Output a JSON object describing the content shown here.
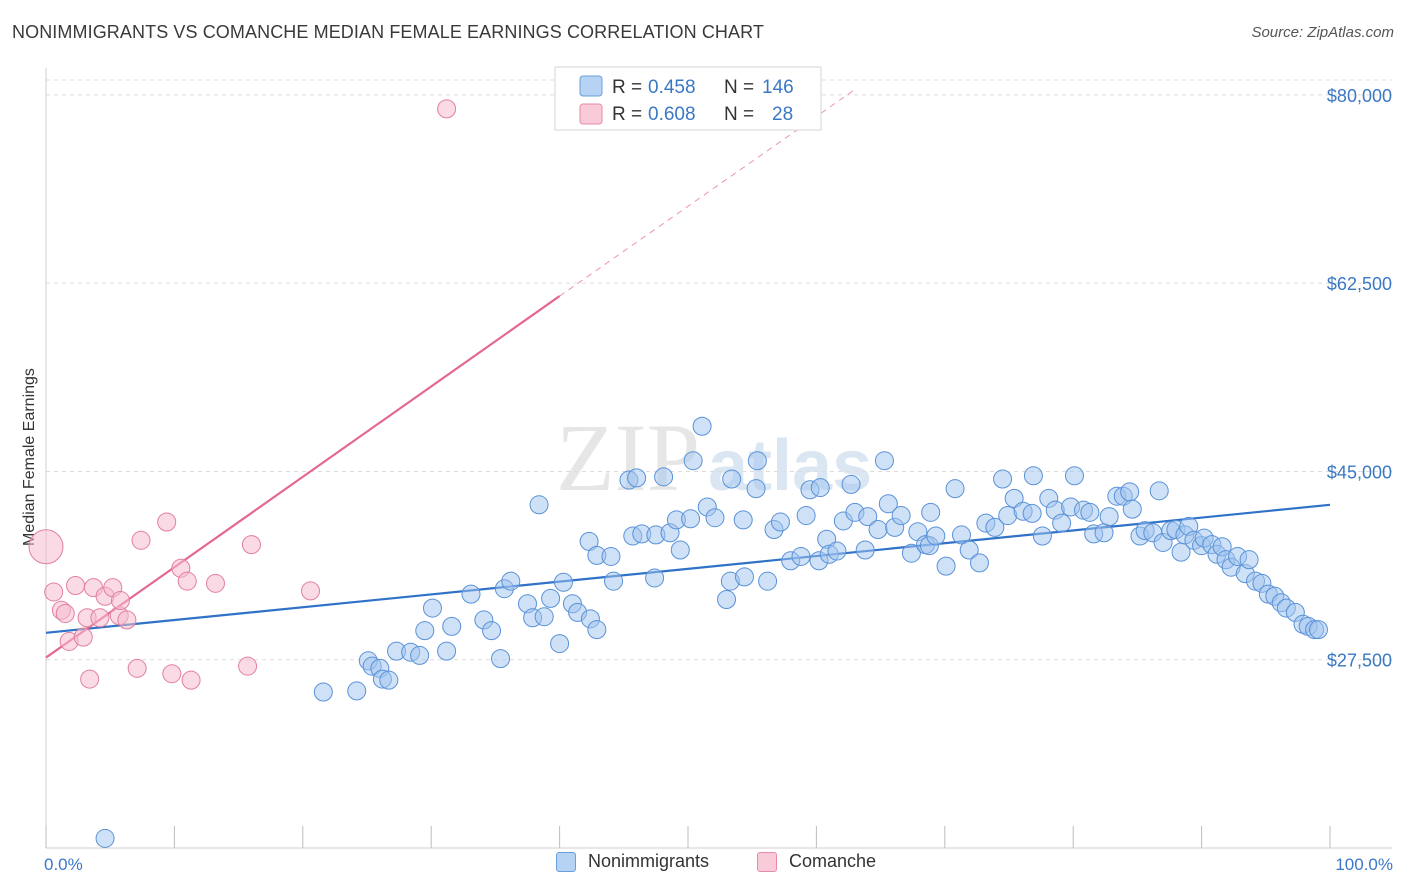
{
  "title": "NONIMMIGRANTS VS COMANCHE MEDIAN FEMALE EARNINGS CORRELATION CHART",
  "source": "Source: ZipAtlas.com",
  "colors": {
    "blue_fill": "#9fc3ee",
    "blue_stroke": "#5a92d8",
    "blue_line": "#2f72c8",
    "pink_fill": "#f6bccd",
    "pink_stroke": "#e2809e",
    "pink_line": "#e4688f",
    "grid": "#dcdcdc",
    "tick_text": "#3b78c4"
  },
  "legend": {
    "series": [
      {
        "name": "Nonimmigrants",
        "r_label": "R =",
        "r_value": "0.458",
        "n_label": "N =",
        "n_value": "146"
      },
      {
        "name": "Comanche",
        "r_label": "R =",
        "r_value": "0.608",
        "n_label": "N =",
        "n_value": "28"
      }
    ]
  },
  "watermark": {
    "zip": "ZIP",
    "atlas": "atlas"
  },
  "chart_data": {
    "type": "scatter",
    "title": "NONIMMIGRANTS VS COMANCHE MEDIAN FEMALE EARNINGS CORRELATION CHART",
    "xlabel": "",
    "ylabel": "Median Female Earnings",
    "x_tick_labels": [
      "0.0%",
      "100.0%"
    ],
    "y_tick_labels": [
      "$27,500",
      "$45,000",
      "$62,500",
      "$80,000"
    ],
    "y_tick_values": [
      27500,
      45000,
      62500,
      80000
    ],
    "xlim": [
      0,
      100
    ],
    "ylim": [
      10000,
      82500
    ],
    "grid": true,
    "series": [
      {
        "name": "Nonimmigrants",
        "trend": {
          "x": [
            0,
            100
          ],
          "y": [
            30000,
            41900
          ]
        },
        "points": [
          [
            4.6,
            10900
          ],
          [
            21.6,
            24500
          ],
          [
            24.2,
            24600
          ],
          [
            25.1,
            27400
          ],
          [
            25.4,
            26900
          ],
          [
            26.0,
            26700
          ],
          [
            26.2,
            25700
          ],
          [
            26.7,
            25600
          ],
          [
            27.3,
            28300
          ],
          [
            28.4,
            28200
          ],
          [
            29.1,
            27900
          ],
          [
            29.5,
            30200
          ],
          [
            30.1,
            32300
          ],
          [
            31.2,
            28300
          ],
          [
            31.6,
            30600
          ],
          [
            33.1,
            33600
          ],
          [
            34.1,
            31200
          ],
          [
            34.7,
            30200
          ],
          [
            35.4,
            27600
          ],
          [
            35.7,
            34100
          ],
          [
            36.2,
            34800
          ],
          [
            37.5,
            32700
          ],
          [
            37.9,
            31400
          ],
          [
            38.4,
            41900
          ],
          [
            38.8,
            31500
          ],
          [
            39.3,
            33200
          ],
          [
            40.0,
            29000
          ],
          [
            40.3,
            34700
          ],
          [
            41.0,
            32700
          ],
          [
            41.4,
            31900
          ],
          [
            42.3,
            38500
          ],
          [
            42.4,
            31300
          ],
          [
            42.9,
            30300
          ],
          [
            42.9,
            37200
          ],
          [
            44.0,
            37100
          ],
          [
            44.2,
            34800
          ],
          [
            45.4,
            44200
          ],
          [
            45.7,
            39000
          ],
          [
            46.0,
            44400
          ],
          [
            46.4,
            39200
          ],
          [
            47.4,
            35100
          ],
          [
            47.5,
            39100
          ],
          [
            48.1,
            44500
          ],
          [
            48.6,
            39300
          ],
          [
            49.1,
            40500
          ],
          [
            49.4,
            37700
          ],
          [
            50.2,
            40600
          ],
          [
            50.4,
            46000
          ],
          [
            51.1,
            49200
          ],
          [
            51.5,
            41700
          ],
          [
            52.1,
            40700
          ],
          [
            53.0,
            33100
          ],
          [
            53.3,
            34800
          ],
          [
            53.4,
            44300
          ],
          [
            54.3,
            40500
          ],
          [
            54.4,
            35200
          ],
          [
            55.4,
            46000
          ],
          [
            55.3,
            43400
          ],
          [
            56.2,
            34800
          ],
          [
            56.7,
            39600
          ],
          [
            57.2,
            40300
          ],
          [
            58.0,
            36700
          ],
          [
            58.8,
            37100
          ],
          [
            59.2,
            40900
          ],
          [
            59.5,
            43300
          ],
          [
            60.2,
            36700
          ],
          [
            60.3,
            43500
          ],
          [
            60.8,
            38700
          ],
          [
            61.0,
            37300
          ],
          [
            61.6,
            37600
          ],
          [
            62.1,
            40400
          ],
          [
            62.7,
            43800
          ],
          [
            63.0,
            41200
          ],
          [
            63.8,
            37700
          ],
          [
            64.0,
            40800
          ],
          [
            64.8,
            39600
          ],
          [
            65.3,
            46000
          ],
          [
            65.6,
            42000
          ],
          [
            66.1,
            39800
          ],
          [
            66.6,
            40900
          ],
          [
            67.4,
            37400
          ],
          [
            67.9,
            39400
          ],
          [
            68.5,
            38200
          ],
          [
            68.8,
            38100
          ],
          [
            68.9,
            41200
          ],
          [
            69.3,
            39000
          ],
          [
            70.1,
            36200
          ],
          [
            70.8,
            43400
          ],
          [
            71.3,
            39100
          ],
          [
            71.9,
            37700
          ],
          [
            72.7,
            36500
          ],
          [
            73.2,
            40200
          ],
          [
            73.9,
            39800
          ],
          [
            74.5,
            44300
          ],
          [
            74.9,
            40900
          ],
          [
            75.4,
            42500
          ],
          [
            76.1,
            41300
          ],
          [
            76.8,
            41100
          ],
          [
            76.9,
            44600
          ],
          [
            77.6,
            39000
          ],
          [
            78.1,
            42500
          ],
          [
            78.6,
            41400
          ],
          [
            79.1,
            40200
          ],
          [
            79.8,
            41700
          ],
          [
            80.1,
            44600
          ],
          [
            80.8,
            41400
          ],
          [
            81.3,
            41200
          ],
          [
            81.6,
            39200
          ],
          [
            82.4,
            39300
          ],
          [
            82.8,
            40800
          ],
          [
            83.4,
            42700
          ],
          [
            83.9,
            42700
          ],
          [
            84.4,
            43100
          ],
          [
            84.6,
            41500
          ],
          [
            85.2,
            39000
          ],
          [
            85.6,
            39500
          ],
          [
            86.2,
            39300
          ],
          [
            86.7,
            43200
          ],
          [
            87.0,
            38400
          ],
          [
            87.6,
            39500
          ],
          [
            88.0,
            39600
          ],
          [
            88.4,
            37500
          ],
          [
            88.7,
            39100
          ],
          [
            89.0,
            39900
          ],
          [
            89.4,
            38600
          ],
          [
            90.0,
            38100
          ],
          [
            90.2,
            38800
          ],
          [
            90.8,
            38200
          ],
          [
            91.2,
            37300
          ],
          [
            91.6,
            38000
          ],
          [
            91.9,
            36800
          ],
          [
            92.3,
            36100
          ],
          [
            92.8,
            37100
          ],
          [
            93.4,
            35500
          ],
          [
            93.7,
            36800
          ],
          [
            94.2,
            34800
          ],
          [
            94.7,
            34600
          ],
          [
            95.2,
            33600
          ],
          [
            95.7,
            33400
          ],
          [
            96.2,
            32800
          ],
          [
            96.6,
            32300
          ],
          [
            97.3,
            31900
          ],
          [
            97.9,
            30800
          ],
          [
            98.3,
            30600
          ],
          [
            98.8,
            30300
          ],
          [
            99.1,
            30300
          ]
        ]
      },
      {
        "name": "Comanche",
        "trend": {
          "x": [
            0,
            40
          ],
          "y": [
            27700,
            61300
          ]
        },
        "trend_extension": {
          "x": [
            40,
            63
          ],
          "y": [
            61300,
            80500
          ]
        },
        "points": [
          [
            0.0,
            38000
          ],
          [
            0.6,
            33800
          ],
          [
            1.2,
            32100
          ],
          [
            1.5,
            31800
          ],
          [
            1.8,
            29200
          ],
          [
            2.3,
            34400
          ],
          [
            2.9,
            29600
          ],
          [
            3.2,
            31400
          ],
          [
            3.4,
            25700
          ],
          [
            3.7,
            34200
          ],
          [
            4.2,
            31400
          ],
          [
            4.6,
            33400
          ],
          [
            5.2,
            34200
          ],
          [
            5.7,
            31600
          ],
          [
            5.8,
            33000
          ],
          [
            6.3,
            31200
          ],
          [
            7.1,
            26700
          ],
          [
            7.4,
            38600
          ],
          [
            9.4,
            40300
          ],
          [
            9.8,
            26200
          ],
          [
            10.5,
            36000
          ],
          [
            11.0,
            34800
          ],
          [
            11.3,
            25600
          ],
          [
            13.2,
            34600
          ],
          [
            15.7,
            26900
          ],
          [
            16.0,
            38200
          ],
          [
            20.6,
            33900
          ],
          [
            31.2,
            78700
          ]
        ]
      }
    ]
  }
}
